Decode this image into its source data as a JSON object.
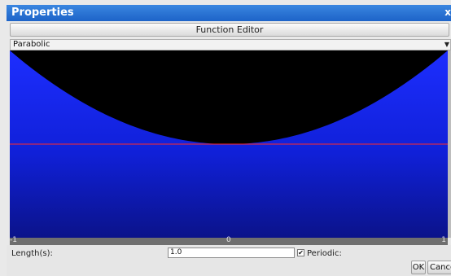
{
  "window": {
    "title": "Properties",
    "close_label": "x"
  },
  "toolbar": {
    "function_editor_label": "Function Editor"
  },
  "function_select": {
    "selected": "Parabolic"
  },
  "graph": {
    "function": "parabolic",
    "x_range": [
      -1,
      1
    ],
    "x_ticks": [
      "-1",
      "0",
      "1"
    ],
    "baseline_color": "#ff2a2a",
    "fill_color": "#1a2bff",
    "background_color": "#000000"
  },
  "form": {
    "length_label": "Length(s):",
    "length_value": "1.0",
    "periodic_label": "Periodic:",
    "periodic_checked": true,
    "checkmark": "✔"
  },
  "buttons": {
    "ok": "OK",
    "cancel": "Cancel"
  }
}
